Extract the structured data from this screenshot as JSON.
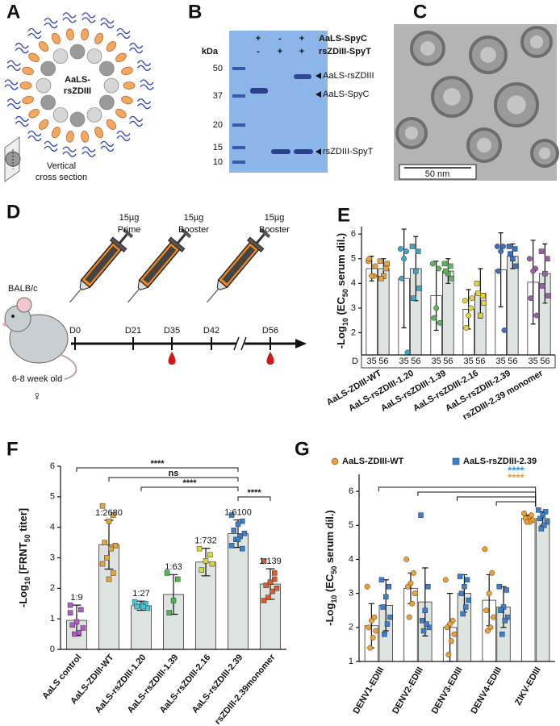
{
  "panel_a": {
    "letter": "A",
    "particle_label": [
      "AaLS-",
      "rsZDIII"
    ],
    "section_label": [
      "Vertical",
      "cross section"
    ]
  },
  "panel_b": {
    "letter": "B",
    "unit": "kDa",
    "markers": [
      50,
      37,
      20,
      15,
      10
    ],
    "lanes": [
      {
        "name": "AaLS-SpyC",
        "signs": [
          "+",
          "-",
          "+"
        ]
      },
      {
        "name": "rsZDIII-SpyT",
        "signs": [
          "-",
          "+",
          "+"
        ]
      }
    ],
    "bands": [
      "AaLS-rsZDIII",
      "AaLS-SpyC",
      "rsZDIII-SpyT"
    ]
  },
  "panel_c": {
    "letter": "C",
    "scale_bar": "50 nm"
  },
  "panel_d": {
    "letter": "D",
    "strain": "BALB/c",
    "age": "6-8 week old",
    "sex": "♀",
    "injections": [
      {
        "dose": "15µg",
        "name": "Prime"
      },
      {
        "dose": "15µg",
        "name": "Booster"
      },
      {
        "dose": "15µg",
        "name": "Booster"
      }
    ],
    "days": [
      "D0",
      "D21",
      "D35",
      "D42",
      "D56"
    ]
  },
  "chart_data": [
    {
      "type": "bar",
      "panel": "E",
      "y_label": [
        {
          "text": "-Log"
        },
        {
          "text": "10",
          "sub": true
        },
        {
          "text": " (EC"
        },
        {
          "text": "50",
          "sub": true
        },
        {
          "text": " serum dil.)"
        }
      ],
      "categories": [
        "AaLS-ZDIII-WT",
        "AaLS-rsZDIII-1.20",
        "AaLS-rsZDIII-1.39",
        "AaLS-rsZDIII-2.16",
        "AaLS-rsZDIII-2.39",
        "rsZDIII-2.39 monomer"
      ],
      "ylim": [
        1.1,
        6.3
      ],
      "yticks": [
        2,
        3,
        4,
        5,
        6
      ],
      "bar_label_prefix": "D",
      "point_colors": [
        "#e8a33c",
        "#3fa7c8",
        "#5cb85c",
        "#e8d23c",
        "#3a6fc4",
        "#9a5fa8"
      ],
      "series": [
        {
          "name": "35",
          "color": "#ffffff",
          "marker": "circle",
          "values": [
            4.6,
            4.2,
            3.5,
            2.95,
            4.55,
            4.05
          ],
          "errors": [
            0.5,
            2.0,
            1.4,
            0.8,
            1.5,
            1.7
          ],
          "points": [
            [
              4.9,
              4.3,
              4.3,
              5.0,
              4.7
            ],
            [
              5.4,
              5.3,
              5.0,
              4.2,
              1.2
            ],
            [
              4.8,
              4.6,
              3.0,
              2.6,
              2.4
            ],
            [
              3.3,
              3.0,
              2.7,
              2.2,
              3.4
            ],
            [
              5.5,
              5.5,
              5.3,
              4.5,
              2.1
            ],
            [
              5.0,
              4.6,
              4.5,
              3.4,
              2.7
            ]
          ]
        },
        {
          "name": "56",
          "color": "#dde4df",
          "marker": "square",
          "values": [
            4.6,
            4.6,
            4.5,
            3.6,
            5.1,
            4.4
          ],
          "errors": [
            0.4,
            1.3,
            0.5,
            1.0,
            0.5,
            1.2
          ],
          "points": [
            [
              4.9,
              4.6,
              4.3,
              4.2,
              4.8
            ],
            [
              5.5,
              5.3,
              4.5,
              3.4,
              3.8
            ],
            [
              4.8,
              4.7,
              4.4,
              4.5,
              4.2
            ],
            [
              4.0,
              3.5,
              2.7,
              3.6,
              3.2
            ],
            [
              5.5,
              5.4,
              5.0,
              5.2,
              4.7
            ],
            [
              5.3,
              5.0,
              4.4,
              3.9,
              3.5
            ]
          ]
        }
      ]
    },
    {
      "type": "bar",
      "panel": "F",
      "y_label": [
        {
          "text": "-Log"
        },
        {
          "text": "10",
          "sub": true
        },
        {
          "text": " [FRNT"
        },
        {
          "text": "50",
          "sub": true
        },
        {
          "text": " titer]"
        }
      ],
      "categories": [
        "AaLS control",
        "AaLS-ZDIII-WT",
        "AaLS-rsZDIII-1.20",
        "AaLS-rsZDIII-1.39",
        "AaLS-rsZDIII-2.16",
        "AaLS-rsZDIII-2.39",
        "rsZDIII-2.39monomer"
      ],
      "ylim": [
        0,
        6
      ],
      "yticks": [
        0,
        1,
        2,
        3,
        4,
        5,
        6
      ],
      "point_colors": [
        "#b05cc8",
        "#e8a33c",
        "#3ec8d8",
        "#4cb848",
        "#d8d838",
        "#3a7fd0",
        "#e05a30"
      ],
      "bar_annotations": [
        "1:9",
        "1:2680",
        "1:27",
        "1:63",
        "1:732",
        "1:6100",
        "1:139"
      ],
      "brackets": [
        {
          "from": "AaLS control",
          "to": "AaLS-rsZDIII-2.39",
          "label": "****"
        },
        {
          "from": "AaLS-ZDIII-WT",
          "to": "AaLS-rsZDIII-2.39",
          "label": "ns"
        },
        {
          "from": "AaLS-rsZDIII-1.20",
          "to": "AaLS-rsZDIII-2.39",
          "label": "****"
        },
        {
          "from": "AaLS-rsZDIII-2.39",
          "to": "rsZDIII-2.39monomer",
          "label": "****"
        }
      ],
      "series": [
        {
          "color": "#dde4df",
          "marker": "square",
          "values": [
            0.95,
            3.43,
            1.43,
            1.8,
            2.86,
            3.79,
            2.14
          ],
          "errors": [
            0.5,
            0.8,
            0.15,
            0.65,
            0.45,
            0.45,
            0.5
          ],
          "points": [
            [
              1.45,
              1.3,
              0.9,
              0.8,
              0.7,
              0.55,
              0.5,
              1.2
            ],
            [
              4.7,
              4.4,
              4.2,
              3.5,
              3.4,
              3.3,
              3.0,
              2.8,
              2.5,
              2.3
            ],
            [
              1.55,
              1.5,
              1.45,
              1.4,
              1.35,
              1.4
            ],
            [
              2.5,
              2.3,
              1.6,
              1.2
            ],
            [
              3.3,
              3.1,
              2.9,
              2.6,
              2.8
            ],
            [
              4.4,
              4.2,
              4.1,
              3.9,
              3.8,
              3.7,
              3.6,
              3.4,
              3.3,
              3.6
            ],
            [
              2.9,
              2.5,
              2.2,
              2.1,
              2.0,
              1.9,
              1.7,
              1.6,
              2.3,
              2.2
            ]
          ]
        }
      ]
    },
    {
      "type": "bar",
      "panel": "G",
      "y_label": [
        {
          "text": "-Log"
        },
        {
          "text": "10",
          "sub": true
        },
        {
          "text": " (EC"
        },
        {
          "text": "50",
          "sub": true
        },
        {
          "text": " serum dil.)"
        }
      ],
      "categories": [
        "DENV1-EDIII",
        "DENV2-EDIII",
        "DENV3-EDIII",
        "DENV4-EDIII",
        "ZIKV-EDIII"
      ],
      "ylim": [
        1,
        6.5
      ],
      "yticks": [
        1,
        2,
        3,
        4,
        5,
        6
      ],
      "legend": "top",
      "comparisons": {
        "to": "ZIKV-EDIII",
        "from": [
          "DENV1-EDIII",
          "DENV2-EDIII",
          "DENV3-EDIII",
          "DENV4-EDIII"
        ],
        "labels": [
          {
            "text": "****",
            "color": "#3b8de0"
          },
          {
            "text": "****",
            "color": "#f0a020"
          }
        ]
      },
      "series": [
        {
          "name": "AaLS-ZDIII-WT",
          "color": "#ffffff",
          "point_color": "#f0a030",
          "marker": "circle",
          "values": [
            2.05,
            3.15,
            2.0,
            2.8,
            5.2
          ],
          "errors": [
            0.65,
            0.45,
            1.0,
            0.75,
            0.1
          ],
          "points": [
            [
              3.2,
              2.3,
              2.2,
              2.0,
              1.9,
              1.7,
              1.4
            ],
            [
              4.0,
              3.6,
              3.3,
              3.2,
              3.0,
              2.7,
              2.3
            ],
            [
              3.4,
              2.2,
              2.1,
              2.0,
              1.8,
              1.6,
              1.2
            ],
            [
              4.3,
              3.6,
              3.0,
              2.5,
              2.3,
              2.0,
              1.9
            ],
            [
              5.35,
              5.3,
              5.2,
              5.2,
              5.15,
              5.1,
              5.1
            ]
          ]
        },
        {
          "name": "AaLS-rsZDIII-2.39",
          "color": "#dde4df",
          "point_color": "#3a7fd0",
          "marker": "square",
          "values": [
            2.65,
            2.75,
            3.0,
            2.6,
            5.2
          ],
          "errors": [
            0.75,
            1.0,
            0.55,
            0.6,
            0.2
          ],
          "points": [
            [
              3.4,
              3.2,
              2.9,
              2.6,
              2.3,
              2.1,
              1.8
            ],
            [
              5.3,
              3.2,
              2.5,
              2.2,
              2.0,
              2.1,
              1.9
            ],
            [
              3.5,
              3.4,
              3.2,
              3.0,
              2.8,
              2.6,
              2.4
            ],
            [
              3.2,
              3.1,
              2.6,
              2.5,
              2.3,
              2.2,
              1.8
            ],
            [
              5.45,
              5.4,
              5.3,
              5.2,
              5.1,
              5.0,
              4.9
            ]
          ]
        }
      ]
    }
  ]
}
